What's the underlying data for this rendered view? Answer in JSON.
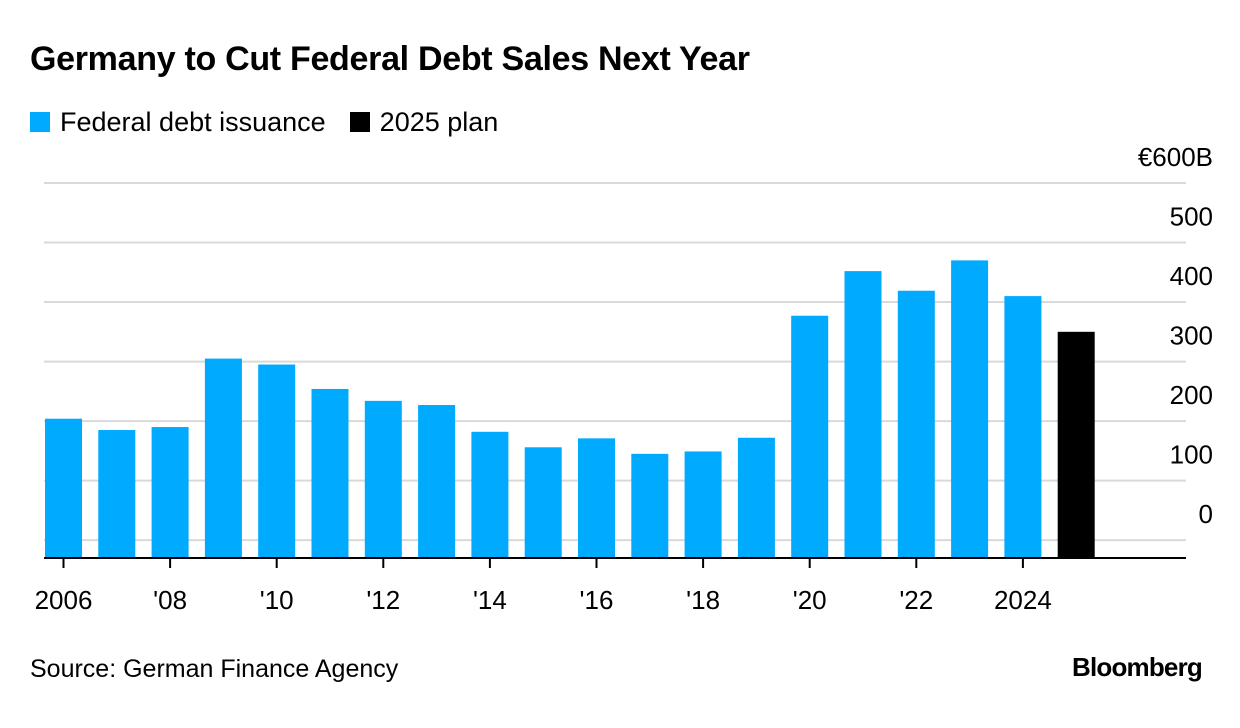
{
  "title": "Germany to Cut Federal Debt Sales Next Year",
  "source": "Source: German Finance Agency",
  "brand": "Bloomberg",
  "colors": {
    "issuance": "#00aaff",
    "plan": "#000000",
    "grid": "#d9d9d9",
    "axis": "#000000"
  },
  "chart_data": {
    "type": "bar",
    "title": "Germany to Cut Federal Debt Sales Next Year",
    "xlabel": "",
    "ylabel": "",
    "ylim": [
      -30,
      600
    ],
    "grid": true,
    "legend_position": "top-left",
    "y_ticks": [
      {
        "value": 600,
        "label": "€600B"
      },
      {
        "value": 500,
        "label": "500"
      },
      {
        "value": 400,
        "label": "400"
      },
      {
        "value": 300,
        "label": "300"
      },
      {
        "value": 200,
        "label": "200"
      },
      {
        "value": 100,
        "label": "100"
      },
      {
        "value": 0,
        "label": "0"
      }
    ],
    "x_tick_labels": [
      {
        "x": 2006,
        "label": "2006"
      },
      {
        "x": 2008,
        "label": "'08"
      },
      {
        "x": 2010,
        "label": "'10"
      },
      {
        "x": 2012,
        "label": "'12"
      },
      {
        "x": 2014,
        "label": "'14"
      },
      {
        "x": 2016,
        "label": "'16"
      },
      {
        "x": 2018,
        "label": "'18"
      },
      {
        "x": 2020,
        "label": "'20"
      },
      {
        "x": 2022,
        "label": "'22"
      },
      {
        "x": 2024,
        "label": "2024"
      }
    ],
    "series": [
      {
        "name": "Federal debt issuance",
        "color": "#00aaff",
        "x": [
          2006,
          2007,
          2008,
          2009,
          2010,
          2011,
          2012,
          2013,
          2014,
          2015,
          2016,
          2017,
          2018,
          2019,
          2020,
          2021,
          2022,
          2023,
          2024
        ],
        "values": [
          204,
          185,
          190,
          305,
          295,
          254,
          234,
          227,
          182,
          156,
          171,
          145,
          149,
          172,
          377,
          452,
          419,
          470,
          410
        ]
      },
      {
        "name": "2025 plan",
        "color": "#000000",
        "x": [
          2025
        ],
        "values": [
          350
        ]
      }
    ]
  }
}
